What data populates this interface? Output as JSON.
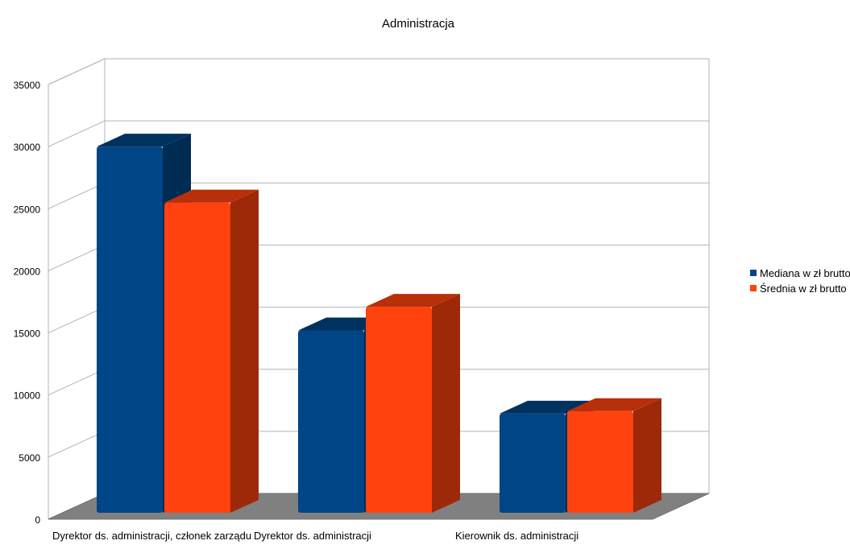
{
  "chart_data": {
    "type": "bar",
    "title": "Administracja",
    "categories": [
      "Dyrektor ds. administracji, członek zarządu",
      "Dyrektor ds. administracji",
      "Kierownik ds. administracji"
    ],
    "series": [
      {
        "name": "Mediana w zł brutto",
        "values": [
          30000,
          15200,
          8500
        ],
        "color": "#004586"
      },
      {
        "name": "Średnia w zł brutto",
        "values": [
          25500,
          17100,
          8700
        ],
        "color": "#ff420e"
      }
    ],
    "ylim": [
      0,
      35000
    ],
    "yticks": [
      "0",
      "5000",
      "10000",
      "15000",
      "20000",
      "25000",
      "30000",
      "35000"
    ],
    "grid": true,
    "legend_position": "right",
    "style": "3d"
  }
}
